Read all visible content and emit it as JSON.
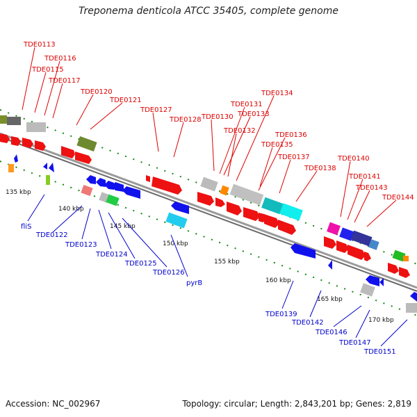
{
  "title": "Treponema denticola ATCC 35405, complete genome",
  "footer": {
    "accession": "Accession: NC_002967",
    "summary": "Topology: circular; Length: 2,843,201 bp; Genes: 2,819"
  },
  "colors": {
    "forward_label": "#dd0000",
    "reverse_label": "#0000cc",
    "backbone": "#8a8a8a",
    "tick": "#118811"
  },
  "scale_labels": [
    "135 kbp",
    "140 kbp",
    "145 kbp",
    "150 kbp",
    "155 kbp",
    "160 kbp",
    "165 kbp",
    "170 kbp"
  ],
  "upper_labels": [
    "TDE0113",
    "TDE0116",
    "TDE0115",
    "TDE0117",
    "TDE0120",
    "TDE0121",
    "TDE0127",
    "TDE0128",
    "TDE0130",
    "TDE0131",
    "TDE0133",
    "TDE0132",
    "TDE0134",
    "TDE0136",
    "TDE0135",
    "TDE0137",
    "TDE0138",
    "TDE0140",
    "TDE0141",
    "TDE0143",
    "TDE0144"
  ],
  "lower_labels": [
    "fliS",
    "TDE0122",
    "TDE0123",
    "TDE0124",
    "TDE0125",
    "TDE0126",
    "pyrB",
    "TDE0139",
    "TDE0142",
    "TDE0146",
    "TDE0147",
    "TDE0151"
  ]
}
